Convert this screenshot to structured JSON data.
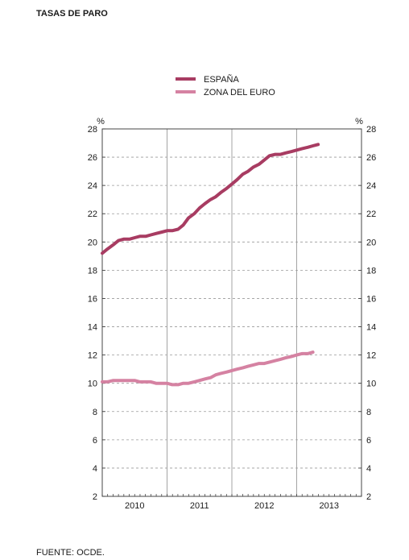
{
  "title": "TASAS DE PARO",
  "source": "FUENTE: OCDE.",
  "colors": {
    "espana": "#a83c62",
    "zona_euro": "#d582a2"
  },
  "chart_data": {
    "type": "line",
    "title": "TASAS DE PARO",
    "ylabel_left": "%",
    "ylabel_right": "%",
    "ylim": [
      2,
      28
    ],
    "yticks": [
      2,
      4,
      6,
      8,
      10,
      12,
      14,
      16,
      18,
      20,
      22,
      24,
      26,
      28
    ],
    "xlim": [
      2009.5,
      2013.5
    ],
    "x_tick_labels": [
      "2010",
      "2011",
      "2012",
      "2013"
    ],
    "legend_position": "top-center",
    "grid": "dashed horizontal, solid vertical at year boundaries",
    "series": [
      {
        "name": "ESPAÑA",
        "color": "#a83c62",
        "x": [
          2009.5,
          2009.58,
          2009.67,
          2009.75,
          2009.83,
          2009.92,
          2010.0,
          2010.08,
          2010.17,
          2010.25,
          2010.33,
          2010.42,
          2010.5,
          2010.58,
          2010.67,
          2010.75,
          2010.83,
          2010.92,
          2011.0,
          2011.08,
          2011.17,
          2011.25,
          2011.33,
          2011.42,
          2011.5,
          2011.58,
          2011.67,
          2011.75,
          2011.83,
          2011.92,
          2012.0,
          2012.08,
          2012.17,
          2012.25,
          2012.33,
          2012.42,
          2012.5,
          2012.58,
          2012.67,
          2012.75,
          2012.83
        ],
        "values": [
          19.2,
          19.5,
          19.8,
          20.1,
          20.2,
          20.2,
          20.3,
          20.4,
          20.4,
          20.5,
          20.6,
          20.7,
          20.8,
          20.8,
          20.9,
          21.2,
          21.7,
          22.0,
          22.4,
          22.7,
          23.0,
          23.2,
          23.5,
          23.8,
          24.1,
          24.4,
          24.8,
          25.0,
          25.3,
          25.5,
          25.8,
          26.1,
          26.2,
          26.2,
          26.3,
          26.4,
          26.5,
          26.6,
          26.7,
          26.8,
          26.9
        ]
      },
      {
        "name": "ZONA DEL EURO",
        "color": "#d582a2",
        "x": [
          2009.5,
          2009.58,
          2009.67,
          2009.75,
          2009.83,
          2009.92,
          2010.0,
          2010.08,
          2010.17,
          2010.25,
          2010.33,
          2010.42,
          2010.5,
          2010.58,
          2010.67,
          2010.75,
          2010.83,
          2010.92,
          2011.0,
          2011.08,
          2011.17,
          2011.25,
          2011.33,
          2011.42,
          2011.5,
          2011.58,
          2011.67,
          2011.75,
          2011.83,
          2011.92,
          2012.0,
          2012.08,
          2012.17,
          2012.25,
          2012.33,
          2012.42,
          2012.5,
          2012.58,
          2012.67,
          2012.75
        ],
        "values": [
          10.1,
          10.1,
          10.2,
          10.2,
          10.2,
          10.2,
          10.2,
          10.1,
          10.1,
          10.1,
          10.0,
          10.0,
          10.0,
          9.9,
          9.9,
          10.0,
          10.0,
          10.1,
          10.2,
          10.3,
          10.4,
          10.6,
          10.7,
          10.8,
          10.9,
          11.0,
          11.1,
          11.2,
          11.3,
          11.4,
          11.4,
          11.5,
          11.6,
          11.7,
          11.8,
          11.9,
          12.0,
          12.1,
          12.1,
          12.2
        ]
      }
    ]
  }
}
